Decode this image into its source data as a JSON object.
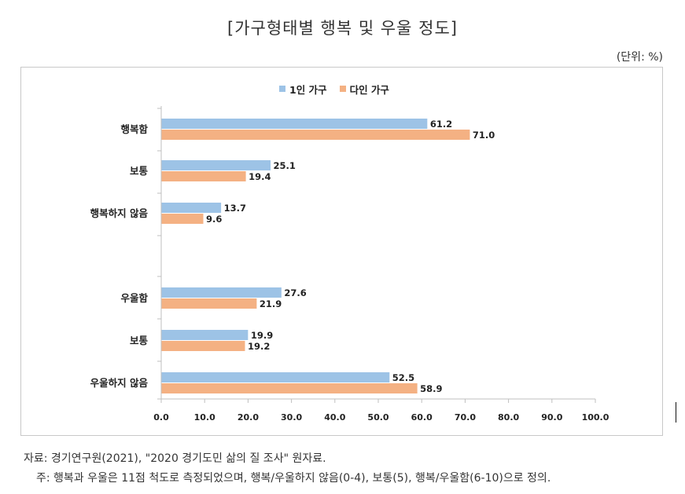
{
  "title": "[가구형태별 행복 및 우울 정도]",
  "unit": "(단위: %)",
  "legend": [
    {
      "label": "1인 가구",
      "color": "#9dc3e6"
    },
    {
      "label": "다인 가구",
      "color": "#f4b183"
    }
  ],
  "footnotes": {
    "source": "자료: 경기연구원(2021), \"2020 경기도민 삶의 질 조사\" 원자료.",
    "note": "주: 행복과 우울은 11점 척도로 측정되었으며, 행복/우울하지 않음(0-4), 보통(5), 행복/우울함(6-10)으로 정의."
  },
  "chart_data": {
    "type": "bar",
    "orientation": "horizontal",
    "categories": [
      "행복함",
      "보통",
      "행복하지 않음",
      "우울함",
      "보통",
      "우울하지 않음"
    ],
    "groups": [
      {
        "categories": [
          "행복함",
          "보통",
          "행복하지 않음"
        ]
      },
      {
        "categories": [
          "우울함",
          "보통",
          "우울하지 않음"
        ]
      }
    ],
    "series": [
      {
        "name": "1인 가구",
        "color": "#9dc3e6",
        "values": [
          61.2,
          25.1,
          13.7,
          27.6,
          19.9,
          52.5
        ],
        "labels": [
          "61.2",
          "25.1",
          "13.7",
          "27.6",
          "19.9",
          "52.5"
        ]
      },
      {
        "name": "다인 가구",
        "color": "#f4b183",
        "values": [
          71.0,
          19.4,
          9.6,
          21.9,
          19.2,
          58.9
        ],
        "labels": [
          "71.0",
          "19.4",
          "9.6",
          "21.9",
          "19.2",
          "58.9"
        ]
      }
    ],
    "xlim": [
      0,
      100
    ],
    "xticks": [
      0,
      10,
      20,
      30,
      40,
      50,
      60,
      70,
      80,
      90,
      100
    ],
    "xtick_labels": [
      "0.0",
      "10.0",
      "20.0",
      "30.0",
      "40.0",
      "50.0",
      "60.0",
      "70.0",
      "80.0",
      "90.0",
      "100.0"
    ],
    "grid": false,
    "legend_position": "top"
  }
}
